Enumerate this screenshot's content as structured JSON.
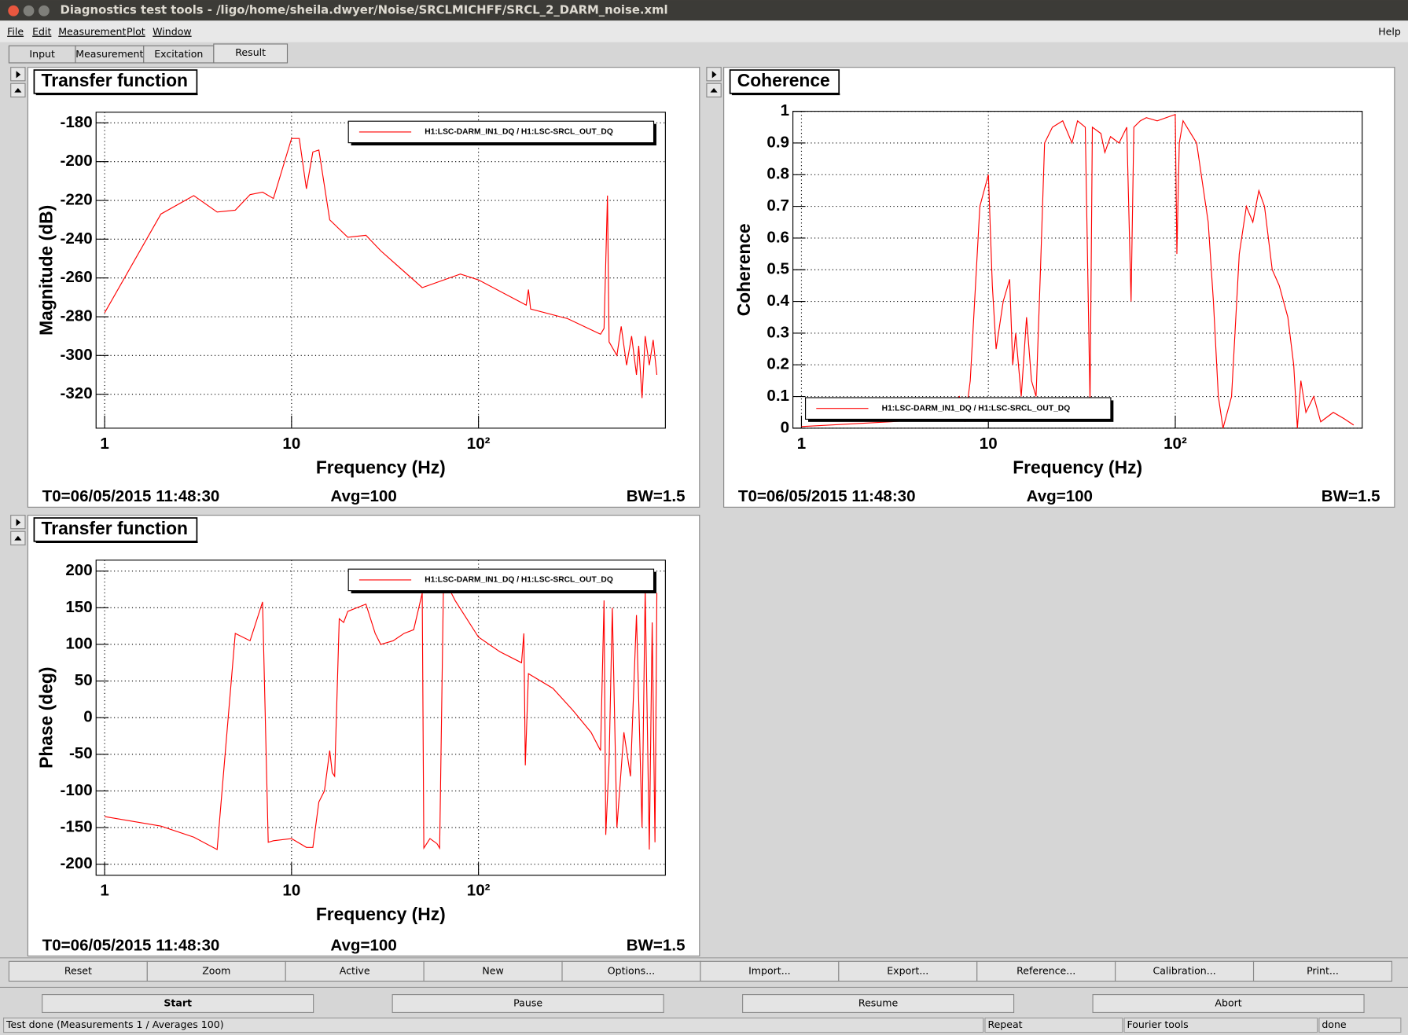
{
  "window": {
    "title": "Diagnostics test tools - /ligo/home/sheila.dwyer/Noise/SRCLMICHFF/SRCL_2_DARM_noise.xml",
    "menu": [
      "File",
      "Edit",
      "Measurement",
      "Plot",
      "Window"
    ],
    "help": "Help",
    "tabs": [
      "Input",
      "Measurement",
      "Excitation",
      "Result"
    ],
    "buttons": [
      "Reset",
      "Zoom",
      "Active",
      "New",
      "Options...",
      "Import...",
      "Export...",
      "Reference...",
      "Calibration...",
      "Print..."
    ],
    "controls": [
      "Start",
      "Pause",
      "Resume",
      "Abort"
    ],
    "status": [
      "Test done (Measurements 1 / Averages 100)",
      "Repeat",
      "Fourier tools",
      "done"
    ]
  },
  "chart_data": [
    {
      "type": "line",
      "title": "Transfer function",
      "x_label": "Frequency (Hz)",
      "y_label": "Magnitude (dB)",
      "xscale": "log",
      "xlim": [
        0.9,
        1000
      ],
      "ylim": [
        -337.5,
        -174.5
      ],
      "xticks": [
        1,
        10,
        {
          "value": 100,
          "label": "10²"
        }
      ],
      "yticks": [
        -180,
        -200,
        -220,
        -240,
        -260,
        -280,
        -300,
        -320
      ],
      "grid": true,
      "legend": "upper right",
      "series": [
        {
          "name": "H1:LSC-DARM_IN1_DQ / H1:LSC-SRCL_OUT_DQ",
          "color": "#ff0000",
          "x": [
            1,
            2,
            3,
            4,
            5,
            6,
            7,
            8,
            10,
            11,
            12,
            13,
            14,
            16,
            20,
            25,
            30,
            50,
            80,
            100,
            180,
            185,
            190,
            300,
            450,
            470,
            490,
            500,
            550,
            580,
            620,
            660,
            700,
            720,
            750,
            780,
            820,
            860,
            900
          ],
          "values": [
            -278,
            -227,
            -217.5,
            -226,
            -225,
            -217,
            -215.7,
            -219,
            -188,
            -188,
            -214,
            -195,
            -194,
            -230,
            -239,
            -238,
            -246,
            -265,
            -258,
            -261,
            -274,
            -266,
            -276,
            -281,
            -289,
            -286,
            -217.5,
            -293,
            -300,
            -285,
            -305,
            -290,
            -310,
            -295,
            -322,
            -290,
            -305,
            -292,
            -310
          ]
        }
      ],
      "t0": "T0=06/05/2015 11:48:30",
      "avg": "Avg=100",
      "bw": "BW=1.5"
    },
    {
      "type": "line",
      "title": "Coherence",
      "x_label": "Frequency (Hz)",
      "y_label": "Coherence",
      "xscale": "log",
      "xlim": [
        0.9,
        1000
      ],
      "ylim": [
        0,
        1
      ],
      "xticks": [
        1,
        10,
        {
          "value": 100,
          "label": "10²"
        }
      ],
      "yticks": [
        0,
        0.1,
        0.2,
        0.3,
        0.4,
        0.5,
        0.6,
        0.7,
        0.8,
        0.9,
        1
      ],
      "grid": true,
      "legend": "lower left",
      "series": [
        {
          "name": "H1:LSC-DARM_IN1_DQ / H1:LSC-SRCL_OUT_DQ",
          "color": "#ff0000",
          "x": [
            1,
            3,
            5,
            7,
            7.5,
            8,
            9,
            10,
            10.5,
            11,
            12,
            13,
            13.5,
            14,
            15,
            16,
            17,
            18,
            19,
            20,
            22,
            25,
            28,
            30,
            33,
            35,
            36,
            40,
            42,
            45,
            50,
            55,
            58,
            60,
            65,
            70,
            80,
            100,
            102,
            105,
            110,
            130,
            150,
            160,
            170,
            180,
            200,
            220,
            240,
            260,
            280,
            300,
            330,
            360,
            400,
            430,
            450,
            470,
            500,
            550,
            600,
            700,
            800,
            900
          ],
          "values": [
            0.005,
            0.02,
            0.03,
            0.1,
            0.02,
            0.15,
            0.7,
            0.8,
            0.45,
            0.25,
            0.4,
            0.47,
            0.2,
            0.3,
            0.1,
            0.35,
            0.15,
            0.1,
            0.5,
            0.9,
            0.95,
            0.97,
            0.9,
            0.97,
            0.95,
            0.08,
            0.95,
            0.93,
            0.87,
            0.92,
            0.9,
            0.95,
            0.4,
            0.95,
            0.97,
            0.98,
            0.97,
            0.99,
            0.55,
            0.9,
            0.97,
            0.9,
            0.65,
            0.4,
            0.1,
            0,
            0.1,
            0.55,
            0.7,
            0.65,
            0.75,
            0.7,
            0.5,
            0.45,
            0.35,
            0.2,
            0,
            0.15,
            0.05,
            0.1,
            0.02,
            0.05,
            0.03,
            0.01
          ]
        }
      ],
      "t0": "T0=06/05/2015 11:48:30",
      "avg": "Avg=100",
      "bw": "BW=1.5"
    },
    {
      "type": "line",
      "title": "Transfer function",
      "x_label": "Frequency (Hz)",
      "y_label": "Phase (deg)",
      "xscale": "log",
      "xlim": [
        0.9,
        1000
      ],
      "ylim": [
        -215,
        215
      ],
      "xticks": [
        1,
        10,
        {
          "value": 100,
          "label": "10²"
        }
      ],
      "yticks": [
        200,
        150,
        100,
        50,
        0,
        -50,
        -100,
        -150,
        -200
      ],
      "grid": true,
      "legend": "upper right",
      "series": [
        {
          "name": "H1:LSC-DARM_IN1_DQ / H1:LSC-SRCL_OUT_DQ",
          "color": "#ff0000",
          "x": [
            1,
            2,
            3,
            4,
            5,
            6,
            7,
            7.5,
            8,
            10,
            12,
            13,
            14,
            15,
            16,
            16.5,
            17,
            18,
            19,
            20,
            25,
            28,
            30,
            35,
            40,
            45,
            50,
            51,
            55,
            60,
            62,
            65,
            70,
            75,
            100,
            130,
            170,
            175,
            178,
            185,
            250,
            320,
            400,
            450,
            470,
            480,
            500,
            520,
            550,
            600,
            650,
            700,
            750,
            780,
            820,
            850,
            880,
            900
          ],
          "values": [
            -135,
            -148,
            -163,
            -180,
            115,
            105,
            158,
            -170,
            -168,
            -165,
            -177,
            -177,
            -115,
            -100,
            -45,
            -75,
            -80,
            135,
            130,
            145,
            155,
            115,
            100,
            105,
            115,
            120,
            170,
            -178,
            -165,
            -172,
            -178,
            185,
            175,
            160,
            110,
            90,
            75,
            115,
            -65,
            60,
            40,
            10,
            -20,
            -45,
            160,
            -160,
            -60,
            150,
            -150,
            -20,
            -80,
            140,
            -150,
            175,
            -180,
            130,
            -170,
            170
          ]
        }
      ],
      "t0": "T0=06/05/2015 11:48:30",
      "avg": "Avg=100",
      "bw": "BW=1.5"
    }
  ]
}
